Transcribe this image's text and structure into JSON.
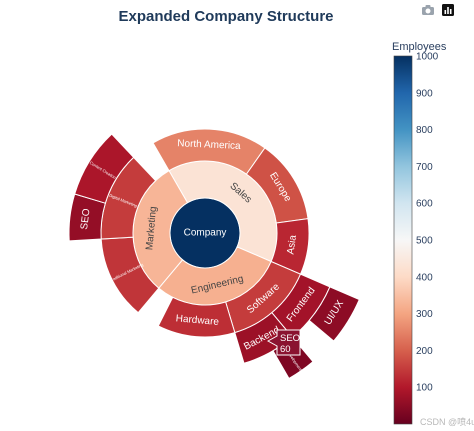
{
  "chart_data": {
    "type": "sunburst",
    "title": "Expanded Company Structure",
    "root": "Company",
    "color_by": "Employees",
    "colorbar": {
      "title": "Employees",
      "range": [
        0,
        1000
      ],
      "ticks": [
        100,
        200,
        300,
        400,
        500,
        600,
        700,
        800,
        900,
        1000
      ],
      "colorscale": "RdBu"
    },
    "nodes": [
      {
        "id": "Company",
        "label": "Company",
        "parent": "",
        "employees": 1000
      },
      {
        "id": "Sales",
        "label": "Sales",
        "parent": "Company",
        "employees": 430
      },
      {
        "id": "Engineering",
        "label": "Engineering",
        "parent": "Company",
        "employees": 320
      },
      {
        "id": "Marketing",
        "label": "Marketing",
        "parent": "Company",
        "employees": 330
      },
      {
        "id": "North America",
        "label": "North America",
        "parent": "Sales",
        "employees": 250
      },
      {
        "id": "Europe",
        "label": "Europe",
        "parent": "Sales",
        "employees": 180
      },
      {
        "id": "Asia",
        "label": "Asia",
        "parent": "Sales",
        "employees": 120
      },
      {
        "id": "Software",
        "label": "Software",
        "parent": "Engineering",
        "employees": 150
      },
      {
        "id": "Hardware",
        "label": "Hardware",
        "parent": "Engineering",
        "employees": 130
      },
      {
        "id": "Traditional Marketing",
        "label": "Traditional Marketing",
        "parent": "Marketing",
        "employees": 140
      },
      {
        "id": "Digital Marketing",
        "label": "Digital Marketing",
        "parent": "Marketing",
        "employees": 150
      },
      {
        "id": "Frontend",
        "label": "Frontend",
        "parent": "Software",
        "employees": 80
      },
      {
        "id": "Backend",
        "label": "Backend",
        "parent": "Software",
        "employees": 70
      },
      {
        "id": "SEO",
        "label": "SEO",
        "parent": "Digital Marketing",
        "employees": 60
      },
      {
        "id": "Content Creation",
        "label": "Content Creation",
        "parent": "Digital Marketing",
        "employees": 90
      },
      {
        "id": "UI/UX",
        "label": "UI/UX",
        "parent": "Frontend",
        "employees": 50
      },
      {
        "id": "API Development",
        "label": "API Development",
        "parent": "Backend",
        "employees": 30
      }
    ],
    "hover_label": {
      "text": "SEO",
      "value": "60"
    }
  },
  "watermark": "CSDN @喷4u"
}
